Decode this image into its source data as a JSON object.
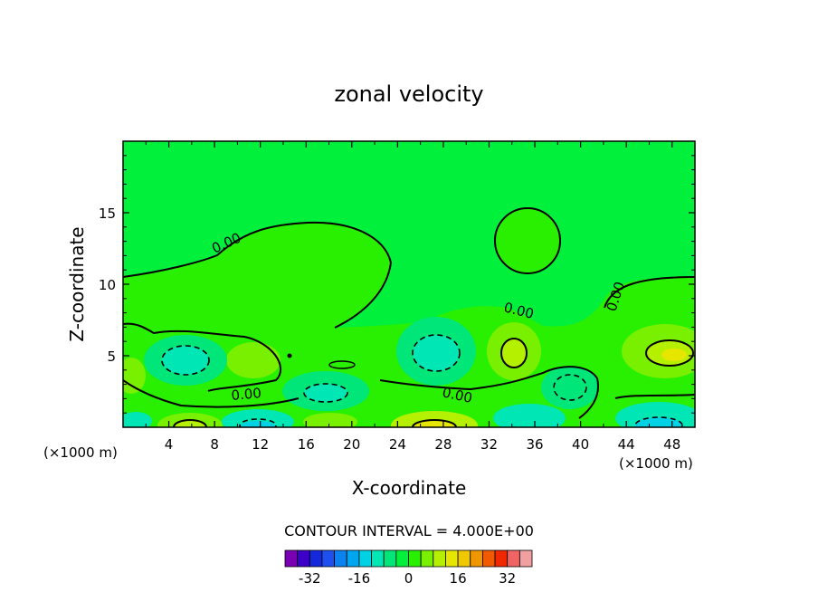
{
  "chart_data": {
    "type": "contour",
    "title": "zonal velocity",
    "xlabel": "X-coordinate",
    "ylabel": "Z-coordinate",
    "x_unit_label": "(×1000 m)",
    "xlim": [
      0,
      50
    ],
    "ylim": [
      0,
      20
    ],
    "x_ticks": [
      4,
      8,
      12,
      16,
      20,
      24,
      28,
      32,
      36,
      40,
      44,
      48
    ],
    "y_ticks": [
      5,
      10,
      15
    ],
    "contour_interval_label": "CONTOUR INTERVAL = 4.000E+00",
    "contour_interval": 4,
    "zero_contour_label": "0.00",
    "colorbar": {
      "levels": [
        -36,
        -32,
        -28,
        -24,
        -20,
        -16,
        -12,
        -8,
        -4,
        0,
        4,
        8,
        12,
        16,
        20,
        24,
        28,
        32,
        36
      ],
      "tick_labels": [
        "-32",
        "-16",
        "0",
        "16",
        "32"
      ],
      "tick_values": [
        -32,
        -16,
        0,
        16,
        32
      ],
      "colors": [
        "#7a00b4",
        "#3c00c8",
        "#1428dc",
        "#1e50f0",
        "#0a82f0",
        "#00a5f0",
        "#00d2e6",
        "#00e6b4",
        "#00e678",
        "#00f03c",
        "#28f000",
        "#78f000",
        "#b4f000",
        "#e6e600",
        "#f0c800",
        "#f09600",
        "#f05a00",
        "#f02800",
        "#f06464",
        "#f0a0a0"
      ]
    }
  }
}
